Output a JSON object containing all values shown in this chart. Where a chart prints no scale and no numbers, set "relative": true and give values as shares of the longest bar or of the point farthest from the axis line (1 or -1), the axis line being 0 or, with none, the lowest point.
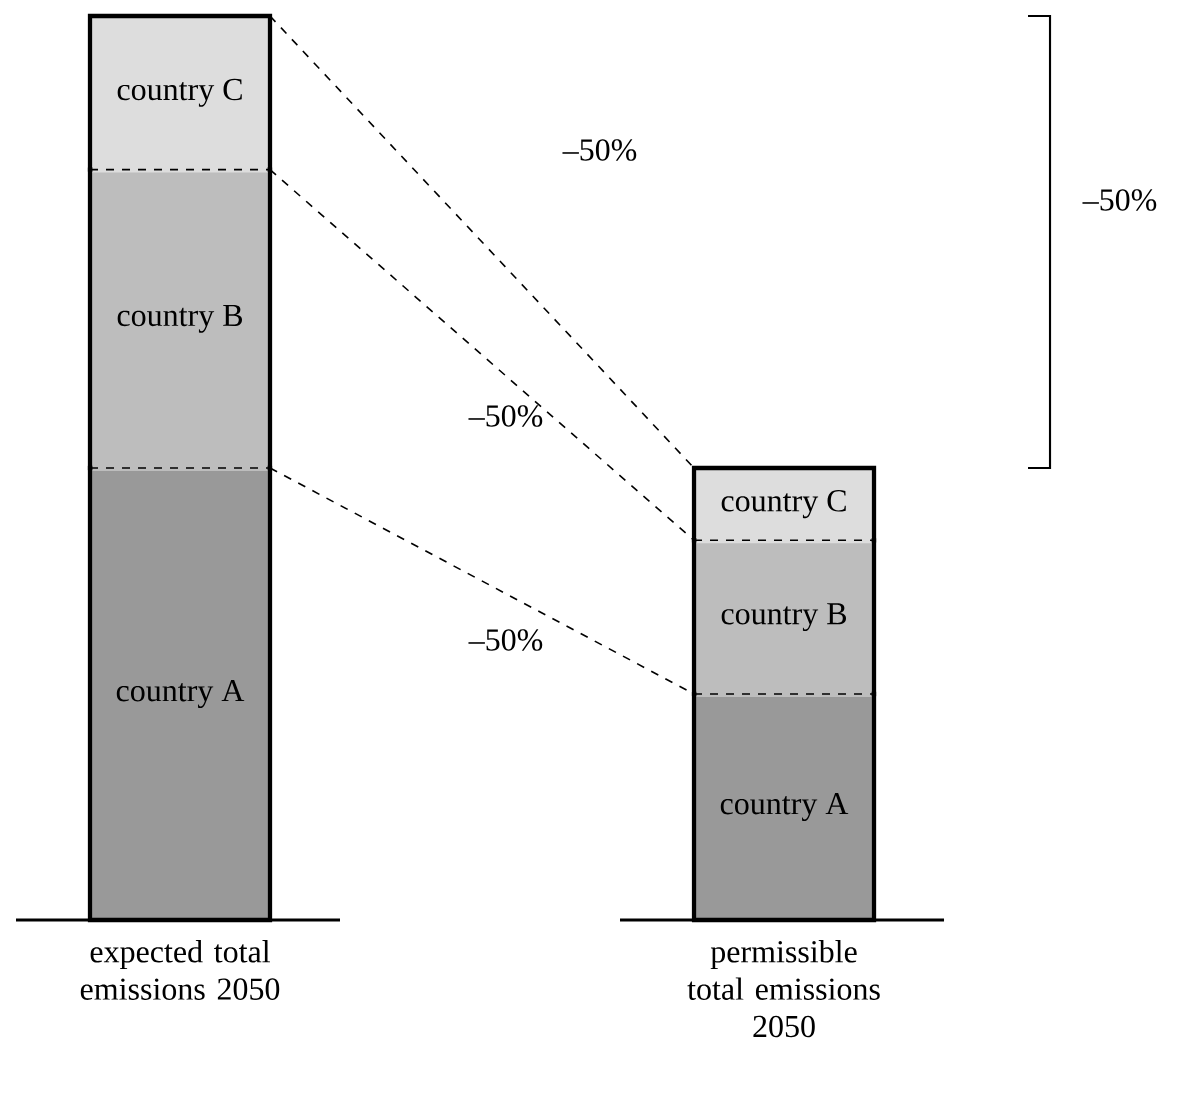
{
  "chart_data": {
    "type": "bar",
    "stacked": true,
    "relative": true,
    "categories": [
      "expected total emissions 2050",
      "permissible total emissions 2050"
    ],
    "series": [
      {
        "name": "country A",
        "color": "#999999",
        "values": [
          0.5,
          0.25
        ]
      },
      {
        "name": "country B",
        "color": "#bdbdbd",
        "values": [
          0.33,
          0.17
        ]
      },
      {
        "name": "country C",
        "color": "#dddddd",
        "values": [
          0.17,
          0.08
        ]
      }
    ],
    "annotations": [
      "–50%",
      "–50%",
      "–50%",
      "–50%"
    ]
  }
}
